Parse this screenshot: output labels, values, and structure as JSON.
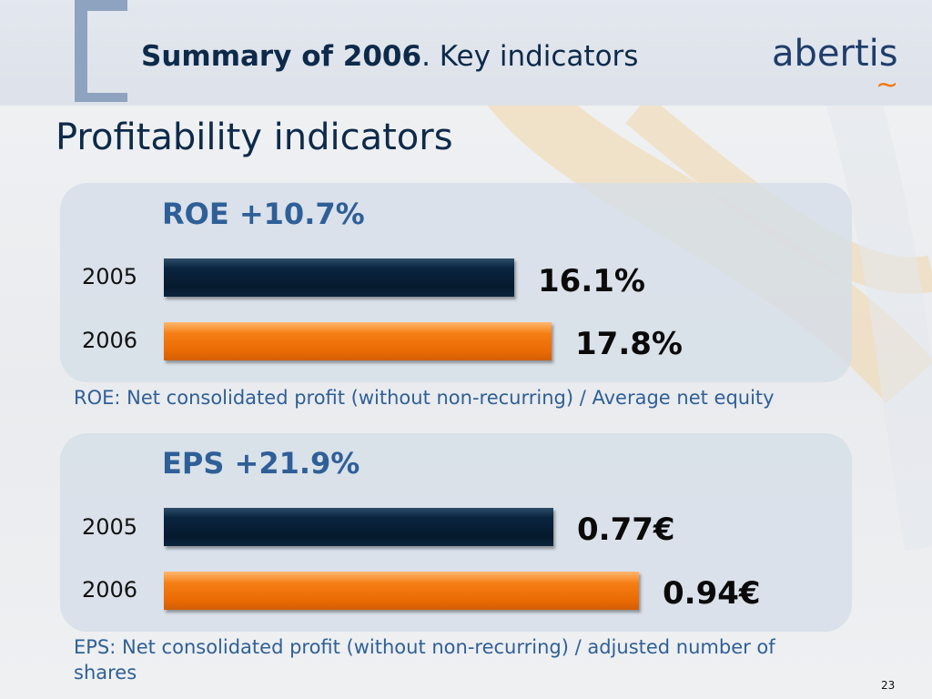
{
  "header": {
    "title_bold": "Summary of 2006",
    "title_rest": ". Key indicators",
    "logo_text": "abertis",
    "accent_colors": {
      "brand_blue": "#1f3d6b",
      "orange": "#f07a12",
      "bracket": "#8ea3bf"
    }
  },
  "section_title": "Profitability indicators",
  "chart_data": [
    {
      "type": "bar",
      "orientation": "horizontal",
      "title": "ROE +10.7%",
      "categories": [
        "2005",
        "2006"
      ],
      "values": [
        16.1,
        17.8
      ],
      "value_labels": [
        "16.1%",
        "17.8%"
      ],
      "unit": "%",
      "bar_colors": [
        "#0a2540",
        "#f07a12"
      ],
      "note": "ROE: Net consolidated profit (without non-recurring) / Average net equity"
    },
    {
      "type": "bar",
      "orientation": "horizontal",
      "title": "EPS +21.9%",
      "categories": [
        "2005",
        "2006"
      ],
      "values": [
        0.77,
        0.94
      ],
      "value_labels": [
        "0.77€",
        "0.94€"
      ],
      "unit": "€",
      "bar_colors": [
        "#0a2540",
        "#f07a12"
      ],
      "note": "EPS: Net consolidated profit (without non-recurring) / adjusted number of shares"
    }
  ],
  "page_number": "23"
}
